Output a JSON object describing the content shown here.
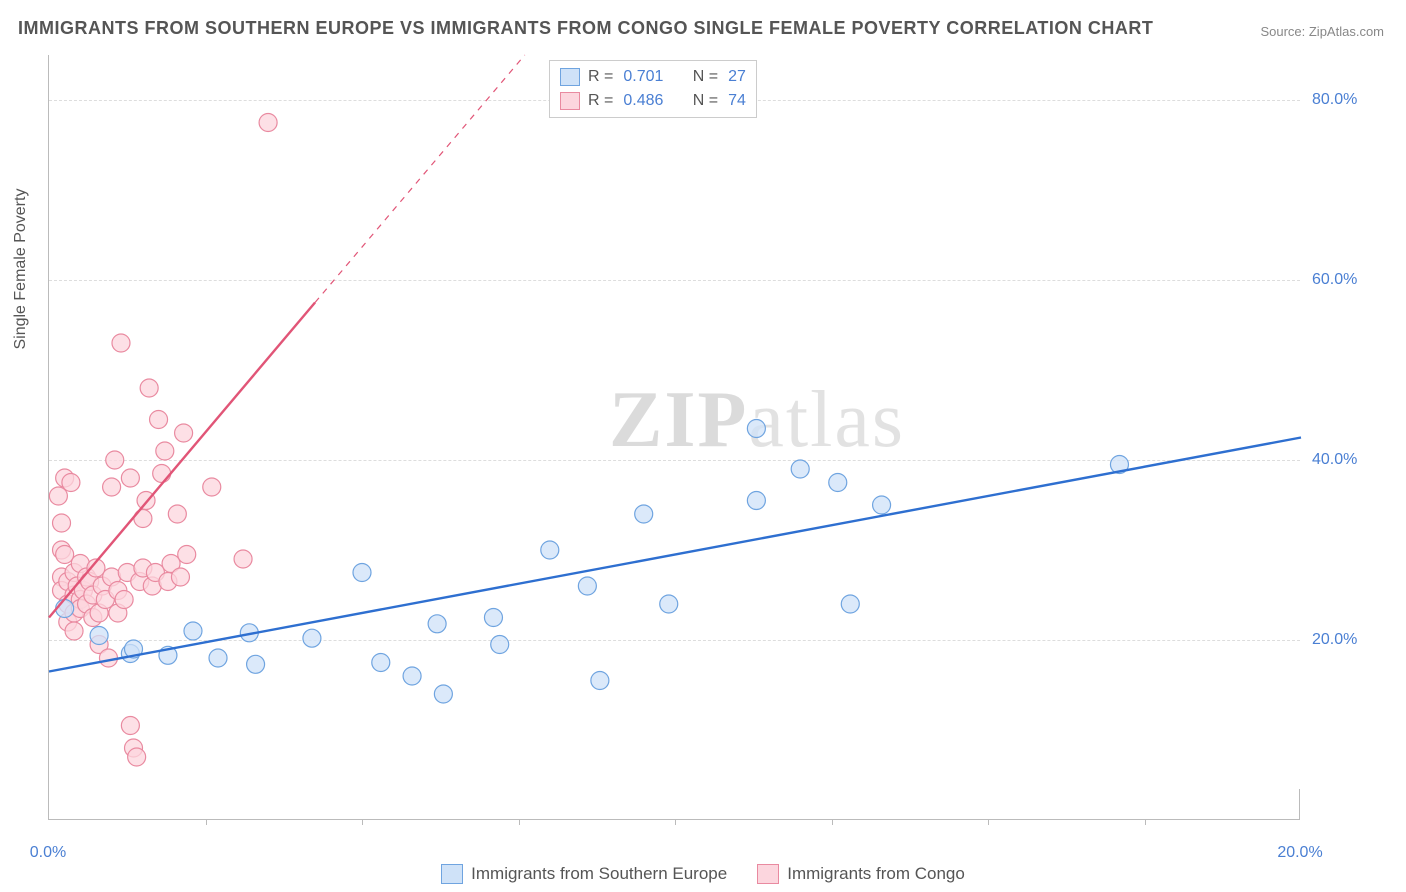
{
  "title": "IMMIGRANTS FROM SOUTHERN EUROPE VS IMMIGRANTS FROM CONGO SINGLE FEMALE POVERTY CORRELATION CHART",
  "source": "Source: ZipAtlas.com",
  "ylabel": "Single Female Poverty",
  "watermark_zip": "ZIP",
  "watermark_atlas": "atlas",
  "chart": {
    "type": "scatter",
    "xlim": [
      0,
      20
    ],
    "ylim": [
      0,
      85
    ],
    "yticks": [
      20,
      40,
      60,
      80
    ],
    "ytick_labels": [
      "20.0%",
      "40.0%",
      "60.0%",
      "80.0%"
    ],
    "xticks_minor": [
      2.5,
      5,
      7.5,
      10,
      12.5,
      15,
      17.5
    ],
    "xtick_labels": {
      "left": "0.0%",
      "right": "20.0%"
    },
    "grid_color": "#dddddd",
    "axis_color": "#bbbbbb",
    "background_color": "#ffffff",
    "marker_radius": 9,
    "marker_stroke_width": 1.2,
    "line_width": 2.4,
    "series": [
      {
        "name": "Immigrants from Southern Europe",
        "fill": "#cfe2f8",
        "stroke": "#6fa4e0",
        "line_color": "#2e6fd0",
        "r": 0.701,
        "n": 27,
        "trend": {
          "x1": 0,
          "y1": 16.5,
          "x2": 20,
          "y2": 42.5
        },
        "points": [
          [
            0.25,
            23.5
          ],
          [
            0.8,
            20.5
          ],
          [
            1.3,
            18.5
          ],
          [
            1.35,
            19.0
          ],
          [
            1.9,
            18.3
          ],
          [
            2.3,
            21.0
          ],
          [
            2.7,
            18.0
          ],
          [
            3.2,
            20.8
          ],
          [
            3.3,
            17.3
          ],
          [
            4.2,
            20.2
          ],
          [
            5.0,
            27.5
          ],
          [
            5.3,
            17.5
          ],
          [
            5.8,
            16.0
          ],
          [
            6.2,
            21.8
          ],
          [
            6.3,
            14.0
          ],
          [
            7.1,
            22.5
          ],
          [
            7.2,
            19.5
          ],
          [
            8.0,
            30.0
          ],
          [
            8.6,
            26.0
          ],
          [
            8.8,
            15.5
          ],
          [
            9.5,
            34.0
          ],
          [
            9.9,
            24.0
          ],
          [
            11.3,
            43.5
          ],
          [
            11.3,
            35.5
          ],
          [
            12.0,
            39.0
          ],
          [
            12.6,
            37.5
          ],
          [
            12.8,
            24.0
          ],
          [
            13.3,
            35.0
          ],
          [
            17.1,
            39.5
          ]
        ]
      },
      {
        "name": "Immigrants from Congo",
        "fill": "#fcd6de",
        "stroke": "#e98aa0",
        "line_color": "#e15577",
        "r": 0.486,
        "n": 74,
        "trend": {
          "x1": 0,
          "y1": 22.5,
          "x2": 4.25,
          "y2": 57.5
        },
        "trend_dash": {
          "x1": 4.25,
          "y1": 57.5,
          "x2": 7.6,
          "y2": 85.0
        },
        "points": [
          [
            0.15,
            36.0
          ],
          [
            0.2,
            33.0
          ],
          [
            0.2,
            30.0
          ],
          [
            0.2,
            27.0
          ],
          [
            0.2,
            25.5
          ],
          [
            0.25,
            38.0
          ],
          [
            0.25,
            29.5
          ],
          [
            0.3,
            24.0
          ],
          [
            0.3,
            26.5
          ],
          [
            0.3,
            22.0
          ],
          [
            0.35,
            37.5
          ],
          [
            0.4,
            25.0
          ],
          [
            0.4,
            27.5
          ],
          [
            0.4,
            23.0
          ],
          [
            0.4,
            21.0
          ],
          [
            0.45,
            26.0
          ],
          [
            0.5,
            24.5
          ],
          [
            0.5,
            23.5
          ],
          [
            0.5,
            28.5
          ],
          [
            0.55,
            25.5
          ],
          [
            0.6,
            27.0
          ],
          [
            0.6,
            24.0
          ],
          [
            0.65,
            26.5
          ],
          [
            0.7,
            25.0
          ],
          [
            0.7,
            22.5
          ],
          [
            0.75,
            28.0
          ],
          [
            0.8,
            23.0
          ],
          [
            0.8,
            19.5
          ],
          [
            0.85,
            26.0
          ],
          [
            0.9,
            24.5
          ],
          [
            0.95,
            18.0
          ],
          [
            1.0,
            37.0
          ],
          [
            1.0,
            27.0
          ],
          [
            1.05,
            40.0
          ],
          [
            1.1,
            25.5
          ],
          [
            1.1,
            23.0
          ],
          [
            1.15,
            53.0
          ],
          [
            1.2,
            24.5
          ],
          [
            1.25,
            27.5
          ],
          [
            1.3,
            38.0
          ],
          [
            1.3,
            10.5
          ],
          [
            1.35,
            8.0
          ],
          [
            1.4,
            7.0
          ],
          [
            1.45,
            26.5
          ],
          [
            1.5,
            33.5
          ],
          [
            1.5,
            28.0
          ],
          [
            1.55,
            35.5
          ],
          [
            1.6,
            48.0
          ],
          [
            1.65,
            26.0
          ],
          [
            1.7,
            27.5
          ],
          [
            1.75,
            44.5
          ],
          [
            1.8,
            38.5
          ],
          [
            1.85,
            41.0
          ],
          [
            1.9,
            26.5
          ],
          [
            1.95,
            28.5
          ],
          [
            2.05,
            34.0
          ],
          [
            2.1,
            27.0
          ],
          [
            2.15,
            43.0
          ],
          [
            2.2,
            29.5
          ],
          [
            2.6,
            37.0
          ],
          [
            3.1,
            29.0
          ],
          [
            3.5,
            77.5
          ]
        ]
      }
    ]
  },
  "legend_top": {
    "r_label": "R  =",
    "n_label": "N  ="
  },
  "legend_bottom": {
    "items": [
      "Immigrants from Southern Europe",
      "Immigrants from Congo"
    ]
  }
}
